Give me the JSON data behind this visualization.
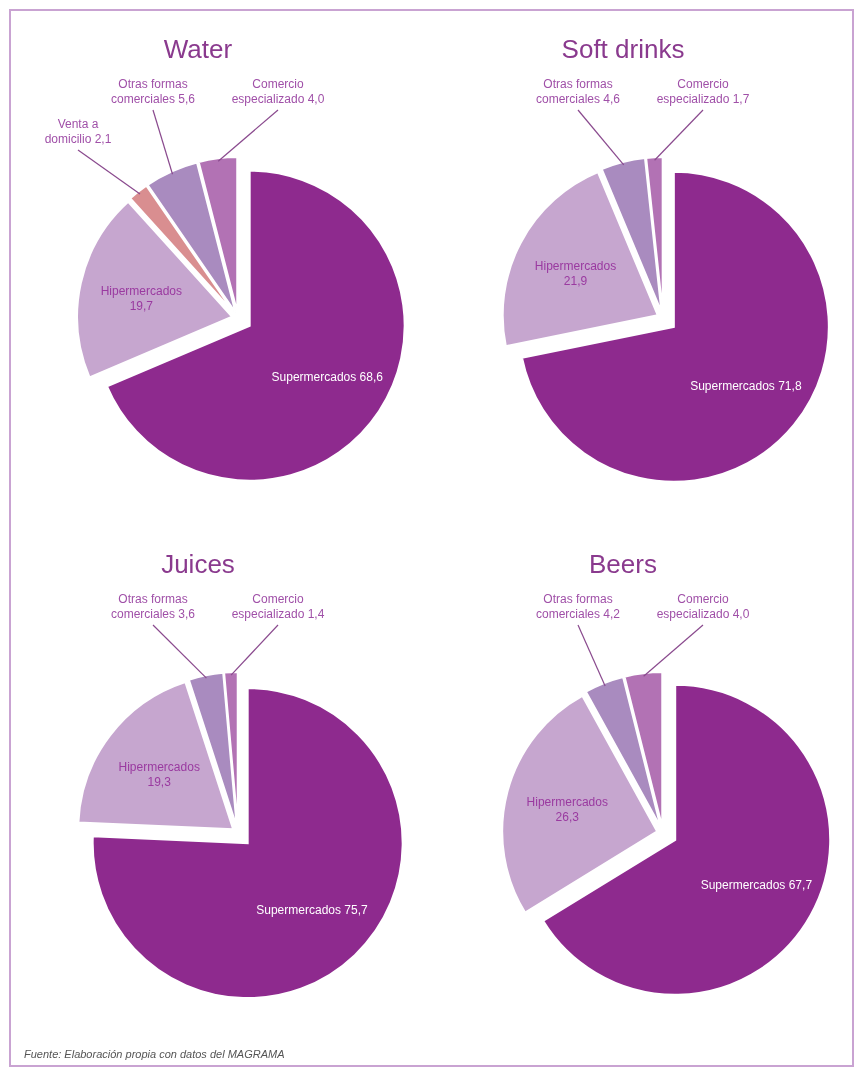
{
  "chart_data": [
    {
      "type": "pie",
      "title": "Water",
      "categories": [
        "Supermercados",
        "Hipermercados",
        "Venta a domicilio",
        "Otras formas comerciales",
        "Comercio especializado"
      ],
      "values": [
        68.6,
        19.7,
        2.1,
        5.6,
        4.0
      ],
      "value_labels": [
        "68,6",
        "19,7",
        "2,1",
        "5,6",
        "4,0"
      ],
      "colors": [
        "#8e2a8e",
        "#c6a6cf",
        "#d98e90",
        "#a98bbf",
        "#b272b4"
      ]
    },
    {
      "type": "pie",
      "title": "Soft drinks",
      "categories": [
        "Supermercados",
        "Hipermercados",
        "Otras formas comerciales",
        "Comercio especializado"
      ],
      "values": [
        71.8,
        21.9,
        4.6,
        1.7
      ],
      "value_labels": [
        "71,8",
        "21,9",
        "4,6",
        "1,7"
      ],
      "colors": [
        "#8e2a8e",
        "#c6a6cf",
        "#a98bbf",
        "#b272b4"
      ]
    },
    {
      "type": "pie",
      "title": "Juices",
      "categories": [
        "Supermercados",
        "Hipermercados",
        "Otras formas comerciales",
        "Comercio especializado"
      ],
      "values": [
        75.7,
        19.3,
        3.6,
        1.4
      ],
      "value_labels": [
        "75,7",
        "19,3",
        "3,6",
        "1,4"
      ],
      "colors": [
        "#8e2a8e",
        "#c6a6cf",
        "#a98bbf",
        "#b272b4"
      ]
    },
    {
      "type": "pie",
      "title": "Beers",
      "categories": [
        "Supermercados",
        "Hipermercados",
        "Otras formas comerciales",
        "Comercio especializado"
      ],
      "values": [
        67.7,
        26.3,
        4.2,
        4.0
      ],
      "value_labels": [
        "67,7",
        "26,3",
        "4,2",
        "4,0"
      ],
      "colors": [
        "#8e2a8e",
        "#c6a6cf",
        "#a98bbf",
        "#b272b4"
      ],
      "annotations": [
        "Fuente: Elaboración propia con datos del MAGRAMA"
      ]
    }
  ]
}
